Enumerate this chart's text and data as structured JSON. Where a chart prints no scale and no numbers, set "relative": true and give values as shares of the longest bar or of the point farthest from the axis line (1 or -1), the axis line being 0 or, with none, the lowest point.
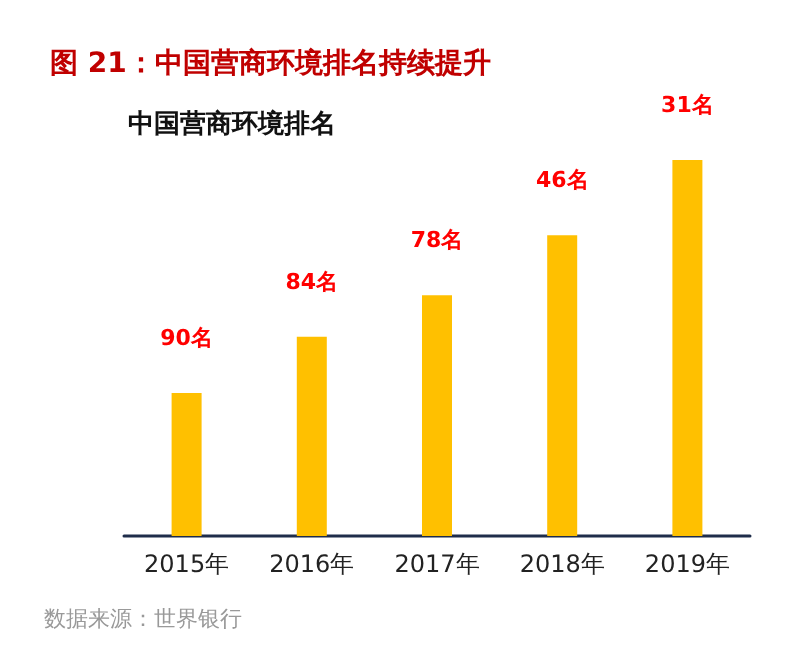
{
  "chart_data": {
    "type": "bar",
    "title": "图 21：中国营商环境排名持续提升",
    "subtitle": "中国营商环境排名",
    "annotations": [
      "数据来源：世界银行",
      {
        "text": "90名",
        "x": "2015年",
        "y": 0.38
      },
      {
        "text": "84名",
        "x": "2016年",
        "y": 0.53
      },
      {
        "text": "78名",
        "x": "2017年",
        "y": 0.64
      },
      {
        "text": "46名",
        "x": "2018年",
        "y": 0.8
      },
      {
        "text": "31名",
        "x": "2019年",
        "y": 1
      }
    ],
    "categories": [
      "2015年",
      "2016年",
      "2017年",
      "2018年",
      "2019年"
    ],
    "values": [
      0.38,
      0.53,
      0.64,
      0.8,
      1
    ],
    "color": "#ffc000",
    "relative": true
  }
}
